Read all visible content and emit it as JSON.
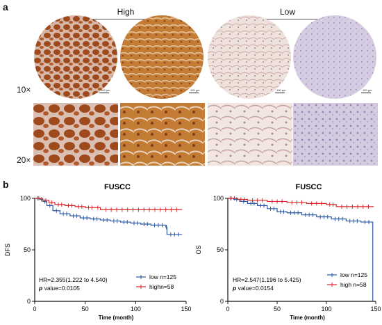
{
  "panel_a": {
    "letter": "a",
    "groups": [
      "High",
      "Low"
    ],
    "magnifications": [
      "10×",
      "20×"
    ],
    "scale_label": "100 μm",
    "stain_colors": {
      "high_strong": "#9e4a1c",
      "high_medium": "#c47b33",
      "low_pale": "#e9d7d2",
      "low_lilac": "#cfc4dc"
    }
  },
  "panel_b": {
    "letter": "b",
    "chart_data": [
      {
        "type": "line",
        "title": "FUSCC",
        "ylabel": "DFS",
        "xlabel": "Time  (month)",
        "xlim": [
          0,
          150
        ],
        "ylim": [
          0,
          100
        ],
        "xticks": [
          "0",
          "50",
          "100",
          "150"
        ],
        "yticks": [
          "0",
          "50",
          "100"
        ],
        "series": [
          {
            "name": "low n=125",
            "color": "#2a59a8",
            "x": [
              0,
              5,
              8,
              12,
              18,
              25,
              35,
              45,
              55,
              65,
              75,
              85,
              95,
              105,
              115,
              130,
              131,
              146
            ],
            "y": [
              100,
              99,
              97,
              93,
              88,
              85,
              83,
              81,
              80,
              79,
              78,
              77,
              76,
              75,
              74,
              72,
              65,
              65
            ]
          },
          {
            "name": "highn=58",
            "color": "#d9262b",
            "x": [
              0,
              8,
              14,
              20,
              30,
              40,
              50,
              60,
              65,
              146
            ],
            "y": [
              100,
              98,
              96,
              94,
              93,
              92,
              91,
              91,
              89,
              89
            ]
          }
        ],
        "annotation": {
          "hr": "HR=2.355(1.222 to 4.540)",
          "p_italic": "p",
          "p_rest": " value=0.0105"
        }
      },
      {
        "type": "line",
        "title": "FUSCC",
        "ylabel": "OS",
        "xlabel": "Time  (month)",
        "xlim": [
          0,
          150
        ],
        "ylim": [
          0,
          100
        ],
        "xticks": [
          "0",
          "50",
          "100",
          "150"
        ],
        "yticks": [
          "0",
          "50",
          "100"
        ],
        "series": [
          {
            "name": "low n=125",
            "color": "#2a59a8",
            "x": [
              0,
              6,
              12,
              20,
              30,
              40,
              50,
              60,
              75,
              90,
              105,
              120,
              135,
              147,
              147
            ],
            "y": [
              100,
              99,
              97,
              95,
              93,
              90,
              87,
              86,
              84,
              82,
              80,
              78,
              77,
              77,
              0
            ]
          },
          {
            "name": "high n=58",
            "color": "#d9262b",
            "x": [
              0,
              10,
              20,
              40,
              60,
              80,
              100,
              110,
              148
            ],
            "y": [
              100,
              99,
              98,
              97,
              96,
              95,
              94,
              92,
              92
            ]
          }
        ],
        "annotation": {
          "hr": "HR=2.547(1.196 to 5.425)",
          "p_italic": "p",
          "p_rest": " value=0.0154"
        }
      }
    ]
  }
}
